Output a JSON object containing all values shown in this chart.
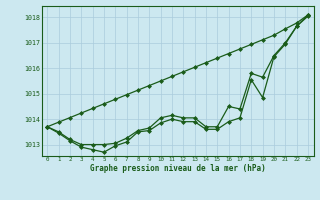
{
  "xlabel": "Graphe pression niveau de la mer (hPa)",
  "x": [
    0,
    1,
    2,
    3,
    4,
    5,
    6,
    7,
    8,
    9,
    10,
    11,
    12,
    13,
    14,
    15,
    16,
    17,
    18,
    19,
    20,
    21,
    22,
    23
  ],
  "line_straight": [
    1013.7,
    1013.88,
    1014.06,
    1014.24,
    1014.42,
    1014.6,
    1014.78,
    1014.96,
    1015.14,
    1015.32,
    1015.5,
    1015.68,
    1015.86,
    1016.04,
    1016.22,
    1016.4,
    1016.58,
    1016.76,
    1016.94,
    1017.12,
    1017.3,
    1017.55,
    1017.78,
    1018.1
  ],
  "line_mid": [
    1013.7,
    1013.5,
    1013.2,
    1013.0,
    1013.0,
    1013.0,
    1013.05,
    1013.25,
    1013.55,
    1013.65,
    1014.05,
    1014.15,
    1014.05,
    1014.05,
    1013.7,
    1013.7,
    1014.5,
    1014.4,
    1015.8,
    1015.65,
    1016.5,
    1017.0,
    1017.65,
    1018.1
  ],
  "line_low": [
    1013.7,
    1013.45,
    1013.15,
    1012.9,
    1012.8,
    1012.7,
    1012.95,
    1013.1,
    1013.5,
    1013.55,
    1013.85,
    1014.0,
    1013.9,
    1013.9,
    1013.6,
    1013.6,
    1013.9,
    1014.05,
    1015.55,
    1014.85,
    1016.45,
    1016.95,
    1017.65,
    1018.05
  ],
  "bg_color": "#cce8f0",
  "line_color": "#1a5c1a",
  "grid_color": "#aaccdd",
  "ylim_min": 1012.55,
  "ylim_max": 1018.45,
  "yticks": [
    1013,
    1014,
    1015,
    1016,
    1017,
    1018
  ],
  "text_color": "#1a5c1a",
  "marker": "D",
  "marker_size": 2.0,
  "lw": 0.9
}
